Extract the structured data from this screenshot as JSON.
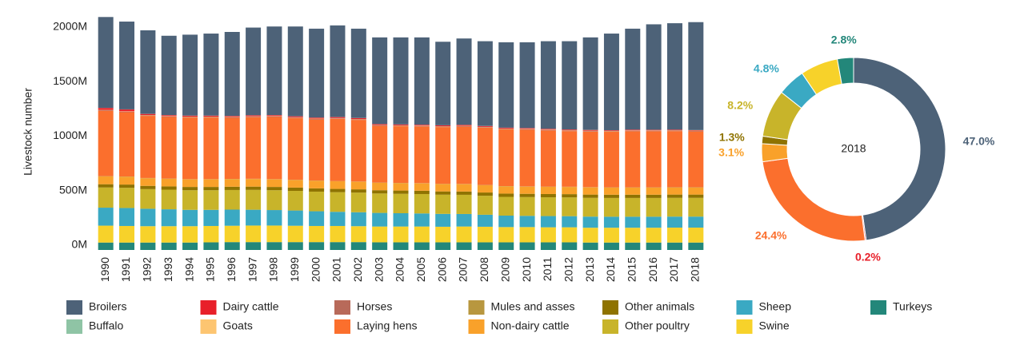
{
  "chart_data": [
    {
      "type": "bar",
      "stacked": true,
      "y_label": "Livestock number",
      "categories": [
        "1990",
        "1991",
        "1992",
        "1993",
        "1994",
        "1995",
        "1996",
        "1997",
        "1998",
        "1999",
        "2000",
        "2001",
        "2002",
        "2003",
        "2004",
        "2005",
        "2006",
        "2007",
        "2008",
        "2009",
        "2010",
        "2011",
        "2012",
        "2013",
        "2014",
        "2015",
        "2016",
        "2017",
        "2018"
      ],
      "ylim": [
        0,
        2150
      ],
      "yticks": [
        {
          "value": 0,
          "label": "0M"
        },
        {
          "value": 500,
          "label": "500M"
        },
        {
          "value": 1000,
          "label": "1000M"
        },
        {
          "value": 1500,
          "label": "1500M"
        },
        {
          "value": 2000,
          "label": "2000M"
        }
      ],
      "grid": false,
      "series": [
        {
          "name": "Broilers",
          "color": "#4d6278",
          "values": [
            833,
            805,
            766,
            727,
            742,
            752,
            770,
            804,
            812,
            823,
            815,
            840,
            819,
            795,
            798,
            800,
            766,
            792,
            777,
            783,
            786,
            803,
            809,
            848,
            886,
            926,
            967,
            976,
            990
          ]
        },
        {
          "name": "Buffalo",
          "color": "#8fc4a5",
          "values": [
            1,
            1,
            1,
            1,
            1,
            1,
            1,
            1,
            1,
            1,
            1,
            1,
            1,
            1,
            1,
            1,
            1,
            1,
            1,
            1,
            1,
            1,
            1,
            1,
            1,
            1,
            1,
            1,
            1
          ]
        },
        {
          "name": "Dairy cattle",
          "color": "#e8202a",
          "values": [
            18,
            17,
            10,
            9,
            9,
            9,
            9,
            9,
            9,
            9,
            9,
            9,
            9,
            8,
            8,
            8,
            8,
            8,
            8,
            7,
            7,
            7,
            7,
            7,
            6,
            6,
            5,
            5,
            4
          ]
        },
        {
          "name": "Goats",
          "color": "#fdc571",
          "values": [
            3,
            3,
            3,
            3,
            3,
            3,
            3,
            3,
            3,
            3,
            3,
            3,
            3,
            3,
            3,
            3,
            3,
            3,
            3,
            3,
            3,
            3,
            3,
            3,
            3,
            3,
            3,
            3,
            3
          ]
        },
        {
          "name": "Horses",
          "color": "#b86a5a",
          "values": [
            5,
            5,
            5,
            5,
            5,
            5,
            5,
            5,
            5,
            5,
            5,
            5,
            5,
            5,
            5,
            5,
            5,
            5,
            5,
            5,
            5,
            5,
            5,
            5,
            5,
            5,
            5,
            5,
            5
          ]
        },
        {
          "name": "Laying hens",
          "color": "#fb6f2d",
          "values": [
            600,
            590,
            570,
            565,
            565,
            565,
            560,
            565,
            570,
            565,
            560,
            570,
            565,
            520,
            520,
            520,
            520,
            525,
            525,
            520,
            520,
            515,
            510,
            510,
            510,
            515,
            515,
            515,
            512
          ]
        },
        {
          "name": "Mules and asses",
          "color": "#b8973f",
          "values": [
            2,
            2,
            2,
            2,
            2,
            2,
            2,
            2,
            2,
            2,
            2,
            2,
            2,
            2,
            2,
            2,
            2,
            2,
            2,
            2,
            2,
            2,
            2,
            2,
            2,
            2,
            2,
            2,
            2
          ]
        },
        {
          "name": "Non-dairy cattle",
          "color": "#f9a12a",
          "values": [
            72,
            72,
            70,
            70,
            70,
            70,
            70,
            70,
            70,
            70,
            70,
            70,
            70,
            68,
            68,
            68,
            68,
            68,
            67,
            67,
            66,
            66,
            66,
            66,
            65,
            65,
            65,
            65,
            65
          ]
        },
        {
          "name": "Other animals",
          "color": "#8f7300",
          "values": [
            30,
            30,
            30,
            30,
            30,
            30,
            30,
            30,
            30,
            30,
            30,
            30,
            30,
            30,
            30,
            30,
            30,
            30,
            30,
            30,
            30,
            30,
            30,
            30,
            30,
            30,
            30,
            30,
            30
          ]
        },
        {
          "name": "Other poultry",
          "color": "#c8b42a",
          "values": [
            185,
            185,
            180,
            180,
            180,
            180,
            180,
            182,
            182,
            180,
            180,
            180,
            180,
            178,
            178,
            178,
            176,
            176,
            174,
            172,
            172,
            172,
            172,
            172,
            172,
            172,
            172,
            172,
            172
          ]
        },
        {
          "name": "Sheep",
          "color": "#3aa9c3",
          "values": [
            165,
            165,
            160,
            155,
            150,
            148,
            148,
            145,
            142,
            140,
            135,
            130,
            128,
            125,
            122,
            120,
            118,
            115,
            110,
            105,
            103,
            103,
            102,
            102,
            101,
            101,
            101,
            101,
            101
          ]
        },
        {
          "name": "Swine",
          "color": "#f7d22a",
          "values": [
            155,
            152,
            150,
            150,
            150,
            150,
            150,
            152,
            152,
            150,
            148,
            148,
            146,
            145,
            145,
            145,
            143,
            145,
            143,
            140,
            140,
            138,
            138,
            136,
            136,
            136,
            136,
            137,
            137
          ]
        },
        {
          "name": "Turkeys",
          "color": "#23877a",
          "values": [
            68,
            68,
            68,
            68,
            68,
            70,
            72,
            72,
            72,
            72,
            72,
            72,
            72,
            70,
            70,
            70,
            70,
            70,
            70,
            70,
            70,
            70,
            70,
            68,
            68,
            68,
            68,
            68,
            68
          ]
        }
      ]
    },
    {
      "type": "pie",
      "donut": true,
      "title": "2018",
      "categories": [
        "Broilers",
        "Dairy cattle",
        "Laying hens",
        "Non-dairy cattle",
        "Other animals",
        "Other poultry",
        "Sheep",
        "Swine",
        "Turkeys"
      ],
      "values": [
        47.0,
        0.2,
        24.4,
        3.1,
        1.3,
        8.2,
        4.8,
        6.5,
        2.8
      ],
      "value_labels": [
        "47.0%",
        "0.2%",
        "24.4%",
        "3.1%",
        "1.3%",
        "8.2%",
        "4.8%",
        null,
        "2.8%"
      ],
      "colors": [
        "#4d6278",
        "#e8202a",
        "#fb6f2d",
        "#f9a12a",
        "#8f7300",
        "#c8b42a",
        "#3aa9c3",
        "#f7d22a",
        "#23877a"
      ]
    }
  ]
}
